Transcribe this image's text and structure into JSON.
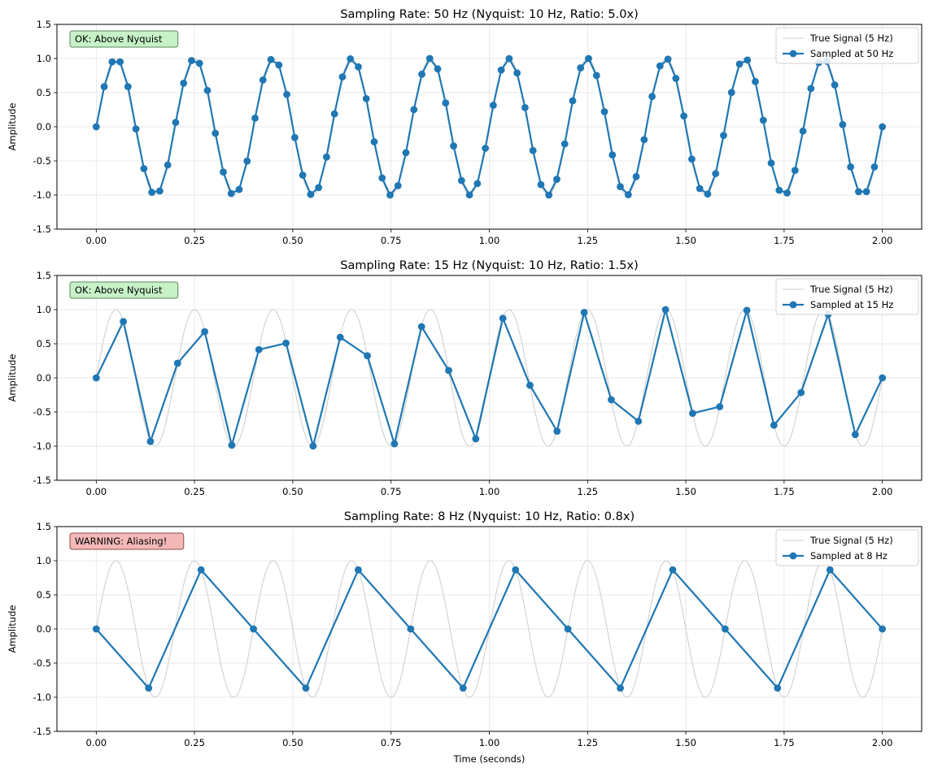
{
  "figure": {
    "xlabel": "Time (seconds)"
  },
  "chart_data": [
    {
      "type": "line",
      "title": "Sampling Rate: 50 Hz (Nyquist: 10 Hz, Ratio: 5.0x)",
      "xlabel": "",
      "ylabel": "Amplitude",
      "xlim": [
        -0.1,
        2.1
      ],
      "ylim": [
        -1.5,
        1.5
      ],
      "x_ticks": [
        "0.00",
        "0.25",
        "0.50",
        "0.75",
        "1.00",
        "1.25",
        "1.50",
        "1.75",
        "2.00"
      ],
      "y_ticks": [
        "-1.5",
        "-1.0",
        "-0.5",
        "0.0",
        "0.5",
        "1.0",
        "1.5"
      ],
      "grid": true,
      "legend_position": "top-right",
      "status_box": {
        "text": "OK: Above Nyquist",
        "background": "#c7f2c7",
        "border": "#5a8a5a"
      },
      "true_signal": {
        "name": "True Signal (5 Hz)",
        "frequency_hz": 5,
        "duration_s": 2.0,
        "color": "#cccccc"
      },
      "series": [
        {
          "name": "Sampled at 50 Hz",
          "sample_rate_hz": 50,
          "color": "#1f77b4",
          "x": [
            0.0,
            0.0202,
            0.0404,
            0.0606,
            0.0808,
            0.101,
            0.1212,
            0.1414,
            0.1616,
            0.1818,
            0.202,
            0.2222,
            0.2424,
            0.2626,
            0.2828,
            0.303,
            0.3232,
            0.3434,
            0.3636,
            0.3838,
            0.404,
            0.4242,
            0.4444,
            0.4646,
            0.4848,
            0.5051,
            0.5253,
            0.5455,
            0.5657,
            0.5859,
            0.6061,
            0.6263,
            0.6465,
            0.6667,
            0.6869,
            0.7071,
            0.7273,
            0.7475,
            0.7677,
            0.7879,
            0.8081,
            0.8283,
            0.8485,
            0.8687,
            0.8889,
            0.9091,
            0.9293,
            0.9495,
            0.9697,
            0.9899,
            1.0101,
            1.0303,
            1.0505,
            1.0707,
            1.0909,
            1.1111,
            1.1313,
            1.1515,
            1.1717,
            1.1919,
            1.2121,
            1.2323,
            1.2525,
            1.2727,
            1.2929,
            1.3131,
            1.3333,
            1.3535,
            1.3737,
            1.3939,
            1.4141,
            1.4343,
            1.4545,
            1.4747,
            1.4949,
            1.5152,
            1.5354,
            1.5556,
            1.5758,
            1.596,
            1.6162,
            1.6364,
            1.6566,
            1.6768,
            1.697,
            1.7172,
            1.7374,
            1.7576,
            1.7778,
            1.798,
            1.8182,
            1.8384,
            1.8586,
            1.8788,
            1.899,
            1.9192,
            1.9394,
            1.9596,
            1.9798,
            2.0
          ],
          "y": [
            0.0,
            0.5878,
            0.9511,
            0.9511,
            0.5878,
            -0.0317,
            -0.6134,
            -0.9607,
            -0.9408,
            -0.5602,
            0.0634,
            0.6384,
            0.9698,
            0.9298,
            0.5321,
            -0.095,
            -0.6627,
            -0.9779,
            -0.9178,
            -0.5033,
            0.1266,
            0.6861,
            0.9848,
            0.905,
            0.4738,
            -0.1581,
            -0.7086,
            -0.9909,
            -0.8915,
            -0.4433,
            0.1893,
            0.7302,
            0.9958,
            0.8774,
            0.4121,
            -0.2203,
            -0.7506,
            -0.9998,
            -0.8627,
            -0.3802,
            0.251,
            0.7698,
            1.0,
            0.8474,
            0.3478,
            -0.2813,
            -0.7878,
            -0.9989,
            -0.8314,
            -0.3147,
            0.3147,
            0.8314,
            0.9989,
            0.7878,
            0.2813,
            -0.3478,
            -0.8474,
            -1.0,
            -0.7698,
            -0.251,
            0.3802,
            0.8627,
            0.9998,
            0.7506,
            0.2203,
            -0.4121,
            -0.8774,
            -0.9958,
            -0.7302,
            -0.1893,
            0.4433,
            0.8915,
            0.9909,
            0.7086,
            0.1581,
            -0.4738,
            -0.905,
            -0.9848,
            -0.6861,
            -0.1266,
            0.5033,
            0.9178,
            0.9779,
            0.6627,
            0.095,
            -0.5321,
            -0.9298,
            -0.9698,
            -0.6384,
            -0.0634,
            0.5602,
            0.9408,
            0.9607,
            0.6134,
            0.0317,
            -0.5878,
            -0.9511,
            -0.9511,
            -0.5878,
            0.0
          ]
        }
      ]
    },
    {
      "type": "line",
      "title": "Sampling Rate: 15 Hz (Nyquist: 10 Hz, Ratio: 1.5x)",
      "xlabel": "",
      "ylabel": "Amplitude",
      "xlim": [
        -0.1,
        2.1
      ],
      "ylim": [
        -1.5,
        1.5
      ],
      "x_ticks": [
        "0.00",
        "0.25",
        "0.50",
        "0.75",
        "1.00",
        "1.25",
        "1.50",
        "1.75",
        "2.00"
      ],
      "y_ticks": [
        "-1.5",
        "-1.0",
        "-0.5",
        "0.0",
        "0.5",
        "1.0",
        "1.5"
      ],
      "grid": true,
      "legend_position": "top-right",
      "status_box": {
        "text": "OK: Above Nyquist",
        "background": "#c7f2c7",
        "border": "#5a8a5a"
      },
      "true_signal": {
        "name": "True Signal (5 Hz)",
        "frequency_hz": 5,
        "duration_s": 2.0,
        "color": "#cccccc"
      },
      "series": [
        {
          "name": "Sampled at 15 Hz",
          "sample_rate_hz": 15,
          "color": "#1f77b4",
          "x": [
            0.0,
            0.069,
            0.1379,
            0.2069,
            0.2759,
            0.3448,
            0.4138,
            0.4828,
            0.5517,
            0.6207,
            0.6897,
            0.7586,
            0.8276,
            0.8966,
            0.9655,
            1.0345,
            1.1034,
            1.1724,
            1.2414,
            1.3103,
            1.3793,
            1.4483,
            1.5172,
            1.5862,
            1.6552,
            1.7241,
            1.7931,
            1.8621,
            1.931,
            2.0
          ],
          "y": [
            0.0,
            0.8262,
            -0.9319,
            0.2142,
            0.6773,
            -0.9864,
            0.4134,
            0.5086,
            -0.998,
            0.5946,
            0.3247,
            -0.9662,
            0.7502,
            0.1087,
            -0.8926,
            0.8735,
            -0.1081,
            -0.7813,
            0.9588,
            -0.3198,
            -0.6354,
            0.9997,
            -0.5194,
            -0.4222,
            0.9898,
            -0.6935,
            -0.2154,
            0.9309,
            -0.8307,
            0.0
          ]
        }
      ]
    },
    {
      "type": "line",
      "title": "Sampling Rate: 8 Hz (Nyquist: 10 Hz, Ratio: 0.8x)",
      "xlabel": "Time (seconds)",
      "ylabel": "Amplitude",
      "xlim": [
        -0.1,
        2.1
      ],
      "ylim": [
        -1.5,
        1.5
      ],
      "x_ticks": [
        "0.00",
        "0.25",
        "0.50",
        "0.75",
        "1.00",
        "1.25",
        "1.50",
        "1.75",
        "2.00"
      ],
      "y_ticks": [
        "-1.5",
        "-1.0",
        "-0.5",
        "0.0",
        "0.5",
        "1.0",
        "1.5"
      ],
      "grid": true,
      "legend_position": "top-right",
      "status_box": {
        "text": "WARNING: Aliasing!",
        "background": "#f4b8b8",
        "border": "#8a4a4a"
      },
      "true_signal": {
        "name": "True Signal (5 Hz)",
        "frequency_hz": 5,
        "duration_s": 2.0,
        "color": "#cccccc"
      },
      "series": [
        {
          "name": "Sampled at 8 Hz",
          "sample_rate_hz": 8,
          "color": "#1f77b4",
          "x": [
            0.0,
            0.1333,
            0.2667,
            0.4,
            0.5333,
            0.6667,
            0.8,
            0.9333,
            1.0667,
            1.2,
            1.3333,
            1.4667,
            1.6,
            1.7333,
            1.8667,
            2.0
          ],
          "y": [
            0.0,
            -0.866,
            0.866,
            0.0,
            -0.866,
            0.866,
            0.0,
            -0.866,
            0.866,
            0.0,
            -0.866,
            0.866,
            0.0,
            -0.866,
            0.866,
            0.0
          ]
        }
      ]
    }
  ]
}
